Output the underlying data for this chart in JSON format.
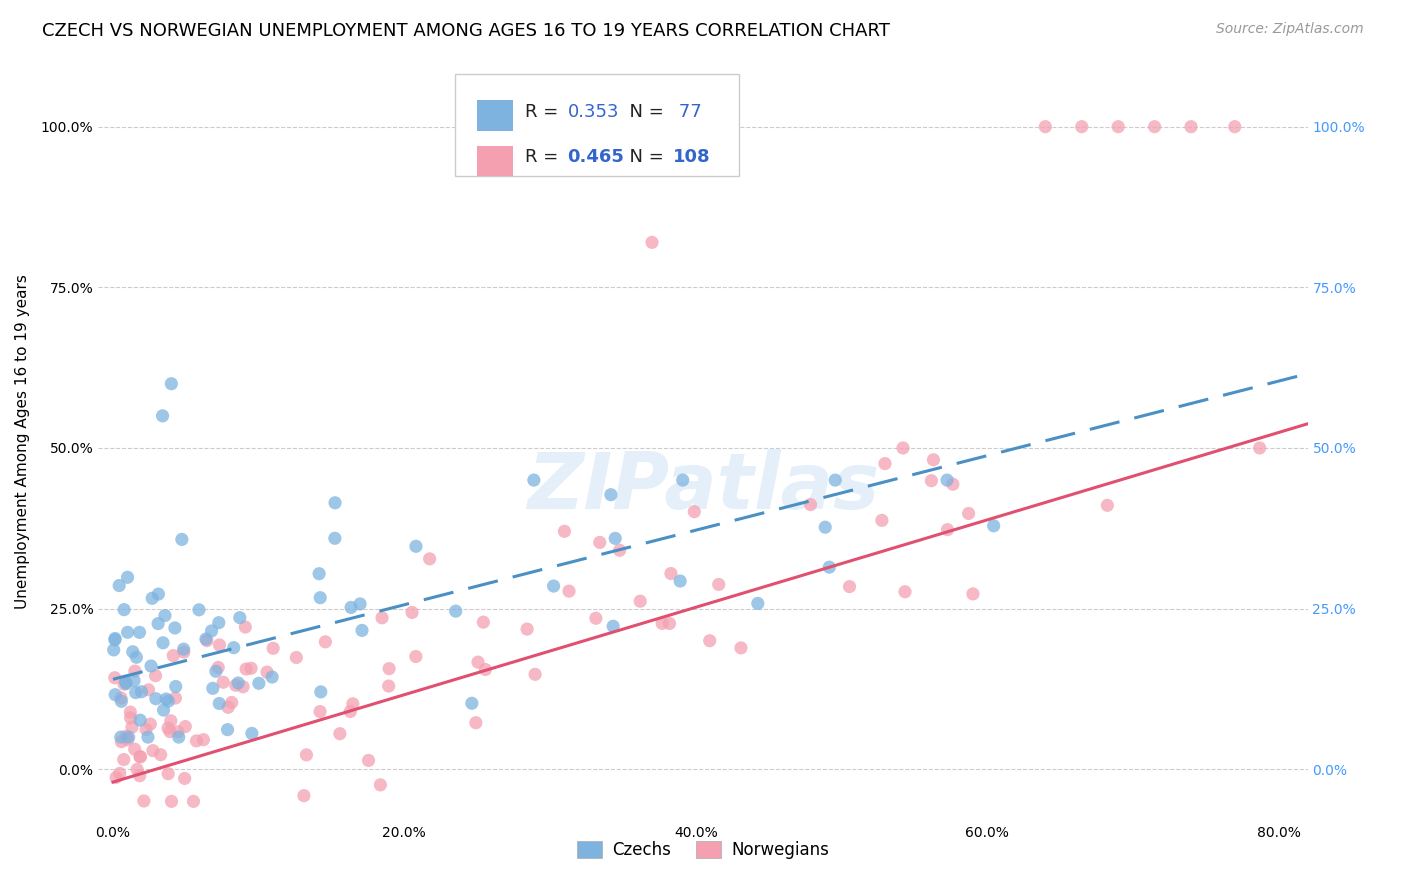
{
  "title": "CZECH VS NORWEGIAN UNEMPLOYMENT AMONG AGES 16 TO 19 YEARS CORRELATION CHART",
  "source": "Source: ZipAtlas.com",
  "ylabel_label": "Unemployment Among Ages 16 to 19 years",
  "legend_czech": "Czechs",
  "legend_norwegian": "Norwegians",
  "czech_R": "0.353",
  "czech_N": "77",
  "norwegian_R": "0.465",
  "norwegian_N": "108",
  "czech_color": "#7EB3E0",
  "norwegian_color": "#F4A0B0",
  "czech_line_color": "#4A90C4",
  "norwegian_line_color": "#E05070",
  "r_n_color": "#3366CC",
  "title_fontsize": 13,
  "source_fontsize": 10,
  "axis_label_fontsize": 11,
  "tick_fontsize": 10,
  "legend_fontsize": 13,
  "background_color": "#FFFFFF",
  "grid_color": "#CCCCCC",
  "right_tick_color": "#4499FF",
  "xlim_min": -0.01,
  "xlim_max": 0.82,
  "ylim_min": -0.08,
  "ylim_max": 1.1,
  "xtick_vals": [
    0.0,
    0.2,
    0.4,
    0.6,
    0.8
  ],
  "ytick_vals": [
    0.0,
    0.25,
    0.5,
    0.75,
    1.0
  ],
  "xtick_labels": [
    "0.0%",
    "20.0%",
    "40.0%",
    "60.0%",
    "80.0%"
  ],
  "ytick_labels": [
    "0.0%",
    "25.0%",
    "50.0%",
    "75.0%",
    "100.0%"
  ]
}
